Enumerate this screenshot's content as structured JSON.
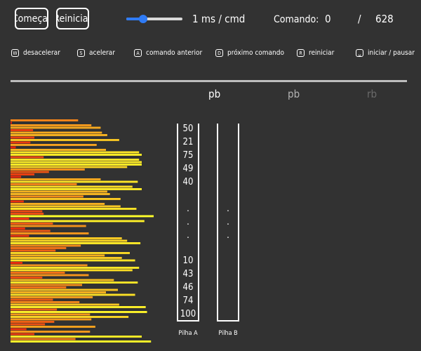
{
  "controls": {
    "start_label": "Começar",
    "reset_label": "Reiniciar",
    "speed": {
      "readout": "1 ms / cmd",
      "level": 0.3
    },
    "command": {
      "label": "Comando:",
      "current": "0",
      "separator": "/",
      "total": "628"
    }
  },
  "shortcuts": [
    {
      "key": "W",
      "label": "desacelerar",
      "icon": "key-w-icon"
    },
    {
      "key": "S",
      "label": "acelerar",
      "icon": "key-s-icon"
    },
    {
      "key": "A",
      "label": "comando anterior",
      "icon": "key-a-icon"
    },
    {
      "key": "D",
      "label": "próximo comando",
      "icon": "key-d-icon"
    },
    {
      "key": "R",
      "label": "reiniciar",
      "icon": "key-r-icon"
    },
    {
      "key": "␣",
      "label": "iniciar / pausar",
      "icon": "key-space-icon"
    }
  ],
  "operations": [
    "pb",
    "pb",
    "rb"
  ],
  "stacks": {
    "a": {
      "label": "Pilha A",
      "top_values": [
        "50",
        "21",
        "75",
        "49",
        "40"
      ],
      "ellipsis": [
        ".",
        ".",
        "."
      ],
      "bottom_values": [
        "10",
        "43",
        "46",
        "74",
        "100"
      ]
    },
    "b": {
      "label": "Pilha B",
      "ellipsis": [
        ".",
        ".",
        "."
      ]
    }
  },
  "visual": {
    "bar_values": [
      51,
      1,
      61,
      68,
      17,
      69,
      73,
      18,
      82,
      15,
      65,
      4,
      72,
      97,
      99,
      25,
      97,
      99,
      99,
      88,
      56,
      29,
      18,
      8,
      68,
      96,
      50,
      92,
      99,
      73,
      75,
      55,
      83,
      10,
      71,
      83,
      95,
      24,
      25,
      108,
      14,
      101,
      32,
      57,
      11,
      30,
      59,
      14,
      84,
      88,
      98,
      53,
      42,
      34,
      90,
      71,
      84,
      94,
      9,
      58,
      97,
      92,
      41,
      59,
      24,
      78,
      96,
      54,
      42,
      81,
      72,
      94,
      62,
      32,
      52,
      82,
      102,
      35,
      103,
      60,
      89,
      61,
      33,
      26,
      64,
      12,
      60,
      18,
      99,
      49,
      106
    ],
    "colors": {
      "low": "#e8180b",
      "high": "#ffff2a",
      "background": "#323232",
      "divider": "#bdbdbd",
      "slider_accent": "#2f7bf5"
    }
  }
}
